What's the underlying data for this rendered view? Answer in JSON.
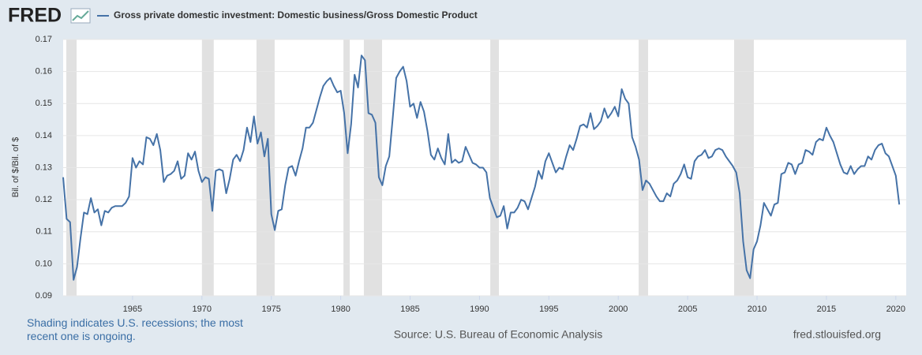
{
  "chart_data": {
    "type": "line",
    "logo": "FRED",
    "y_label": "Bil. of $/Bil. of $",
    "note": "Shading indicates U.S. recessions; the most recent one is ongoing.",
    "source": "Source: U.S. Bureau of Economic Analysis",
    "site": "fred.stlouisfed.org",
    "xlim": [
      1960,
      2020.75
    ],
    "xticks": [
      1965,
      1970,
      1975,
      1980,
      1985,
      1990,
      1995,
      2000,
      2005,
      2010,
      2015,
      2020
    ],
    "ylim": [
      0.09,
      0.17
    ],
    "yticks": [
      0.09,
      {
        "value": 0.1,
        "label": "0.10"
      },
      0.11,
      0.12,
      0.13,
      0.14,
      0.15,
      0.16,
      0.17
    ],
    "grid": true,
    "recession_color": "#e1e1e1",
    "recessions": [
      [
        1960.23,
        1960.97
      ],
      [
        1970.0,
        1970.85
      ],
      [
        1973.93,
        1975.24
      ],
      [
        1980.2,
        1980.65
      ],
      [
        1981.67,
        1982.98
      ],
      [
        1990.78,
        1991.4
      ],
      [
        2001.47,
        2002.15
      ],
      [
        2008.35,
        2009.77
      ]
    ],
    "x": [
      1960,
      1960.25,
      1960.5,
      1960.75,
      1961,
      1961.25,
      1961.5,
      1961.75,
      1962,
      1962.25,
      1962.5,
      1962.75,
      1963,
      1963.25,
      1963.5,
      1963.75,
      1964,
      1964.25,
      1964.5,
      1964.75,
      1965,
      1965.25,
      1965.5,
      1965.75,
      1966,
      1966.25,
      1966.5,
      1966.75,
      1967,
      1967.25,
      1967.5,
      1967.75,
      1968,
      1968.25,
      1968.5,
      1968.75,
      1969,
      1969.25,
      1969.5,
      1969.75,
      1970,
      1970.25,
      1970.5,
      1970.75,
      1971,
      1971.25,
      1971.5,
      1971.75,
      1972,
      1972.25,
      1972.5,
      1972.75,
      1973,
      1973.25,
      1973.5,
      1973.75,
      1974,
      1974.25,
      1974.5,
      1974.75,
      1975,
      1975.25,
      1975.5,
      1975.75,
      1976,
      1976.25,
      1976.5,
      1976.75,
      1977,
      1977.25,
      1977.5,
      1977.75,
      1978,
      1978.25,
      1978.5,
      1978.75,
      1979,
      1979.25,
      1979.5,
      1979.75,
      1980,
      1980.25,
      1980.5,
      1980.75,
      1981,
      1981.25,
      1981.5,
      1981.75,
      1982,
      1982.25,
      1982.5,
      1982.75,
      1983,
      1983.25,
      1983.5,
      1983.75,
      1984,
      1984.25,
      1984.5,
      1984.75,
      1985,
      1985.25,
      1985.5,
      1985.75,
      1986,
      1986.25,
      1986.5,
      1986.75,
      1987,
      1987.25,
      1987.5,
      1987.75,
      1988,
      1988.25,
      1988.5,
      1988.75,
      1989,
      1989.25,
      1989.5,
      1989.75,
      1990,
      1990.25,
      1990.5,
      1990.75,
      1991,
      1991.25,
      1991.5,
      1991.75,
      1992,
      1992.25,
      1992.5,
      1992.75,
      1993,
      1993.25,
      1993.5,
      1993.75,
      1994,
      1994.25,
      1994.5,
      1994.75,
      1995,
      1995.25,
      1995.5,
      1995.75,
      1996,
      1996.25,
      1996.5,
      1996.75,
      1997,
      1997.25,
      1997.5,
      1997.75,
      1998,
      1998.25,
      1998.5,
      1998.75,
      1999,
      1999.25,
      1999.5,
      1999.75,
      2000,
      2000.25,
      2000.5,
      2000.75,
      2001,
      2001.25,
      2001.5,
      2001.75,
      2002,
      2002.25,
      2002.5,
      2002.75,
      2003,
      2003.25,
      2003.5,
      2003.75,
      2004,
      2004.25,
      2004.5,
      2004.75,
      2005,
      2005.25,
      2005.5,
      2005.75,
      2006,
      2006.25,
      2006.5,
      2006.75,
      2007,
      2007.25,
      2007.5,
      2007.75,
      2008,
      2008.25,
      2008.5,
      2008.75,
      2009,
      2009.25,
      2009.5,
      2009.75,
      2010,
      2010.25,
      2010.5,
      2010.75,
      2011,
      2011.25,
      2011.5,
      2011.75,
      2012,
      2012.25,
      2012.5,
      2012.75,
      2013,
      2013.25,
      2013.5,
      2013.75,
      2014,
      2014.25,
      2014.5,
      2014.75,
      2015,
      2015.25,
      2015.5,
      2015.75,
      2016,
      2016.25,
      2016.5,
      2016.75,
      2017,
      2017.25,
      2017.5,
      2017.75,
      2018,
      2018.25,
      2018.5,
      2018.75,
      2019,
      2019.25,
      2019.5,
      2019.75,
      2020,
      2020.25
    ],
    "series": [
      {
        "name": "Gross private domestic investment: Domestic business/Gross Domestic Product",
        "color": "#4572a7",
        "values": [
          0.127,
          0.114,
          0.113,
          0.095,
          0.099,
          0.108,
          0.116,
          0.1155,
          0.1205,
          0.116,
          0.117,
          0.112,
          0.1165,
          0.116,
          0.1175,
          0.118,
          0.118,
          0.118,
          0.119,
          0.121,
          0.133,
          0.13,
          0.132,
          0.131,
          0.1395,
          0.139,
          0.137,
          0.1405,
          0.1355,
          0.1255,
          0.1275,
          0.128,
          0.129,
          0.132,
          0.1265,
          0.1275,
          0.1345,
          0.1325,
          0.135,
          0.129,
          0.1255,
          0.127,
          0.1265,
          0.1165,
          0.129,
          0.1295,
          0.129,
          0.122,
          0.1265,
          0.1325,
          0.134,
          0.132,
          0.1355,
          0.1425,
          0.138,
          0.146,
          0.1375,
          0.141,
          0.1335,
          0.139,
          0.1155,
          0.1105,
          0.1165,
          0.117,
          0.1245,
          0.13,
          0.1305,
          0.1275,
          0.132,
          0.136,
          0.1425,
          0.1425,
          0.144,
          0.148,
          0.152,
          0.1555,
          0.157,
          0.158,
          0.1555,
          0.1535,
          0.154,
          0.147,
          0.1345,
          0.1435,
          0.159,
          0.155,
          0.165,
          0.1635,
          0.147,
          0.1465,
          0.144,
          0.127,
          0.1245,
          0.1305,
          0.1335,
          0.1455,
          0.158,
          0.16,
          0.1615,
          0.157,
          0.149,
          0.15,
          0.1455,
          0.1505,
          0.1475,
          0.1415,
          0.134,
          0.1325,
          0.136,
          0.133,
          0.131,
          0.1405,
          0.1315,
          0.1325,
          0.1315,
          0.132,
          0.1365,
          0.134,
          0.1315,
          0.131,
          0.13,
          0.13,
          0.1285,
          0.1205,
          0.1175,
          0.1145,
          0.115,
          0.118,
          0.111,
          0.116,
          0.116,
          0.1175,
          0.12,
          0.1195,
          0.117,
          0.1205,
          0.124,
          0.129,
          0.1265,
          0.132,
          0.1345,
          0.1315,
          0.1285,
          0.13,
          0.1295,
          0.1335,
          0.137,
          0.1355,
          0.139,
          0.143,
          0.1435,
          0.1425,
          0.147,
          0.142,
          0.143,
          0.1445,
          0.1485,
          0.1455,
          0.147,
          0.149,
          0.146,
          0.1545,
          0.1515,
          0.15,
          0.1395,
          0.1365,
          0.1325,
          0.123,
          0.126,
          0.125,
          0.123,
          0.121,
          0.1195,
          0.1195,
          0.122,
          0.121,
          0.125,
          0.126,
          0.128,
          0.131,
          0.127,
          0.1265,
          0.132,
          0.1335,
          0.134,
          0.1355,
          0.133,
          0.1335,
          0.1355,
          0.136,
          0.1355,
          0.1335,
          0.132,
          0.1305,
          0.1285,
          0.122,
          0.107,
          0.098,
          0.0955,
          0.1045,
          0.107,
          0.112,
          0.119,
          0.117,
          0.115,
          0.1185,
          0.119,
          0.128,
          0.1285,
          0.1315,
          0.131,
          0.128,
          0.131,
          0.1315,
          0.1355,
          0.135,
          0.134,
          0.138,
          0.139,
          0.1385,
          0.1425,
          0.14,
          0.138,
          0.1345,
          0.131,
          0.1285,
          0.128,
          0.1305,
          0.128,
          0.1295,
          0.1305,
          0.1305,
          0.1335,
          0.1325,
          0.1355,
          0.137,
          0.1375,
          0.1345,
          0.1335,
          0.1305,
          0.1275,
          0.1185
        ]
      }
    ]
  }
}
